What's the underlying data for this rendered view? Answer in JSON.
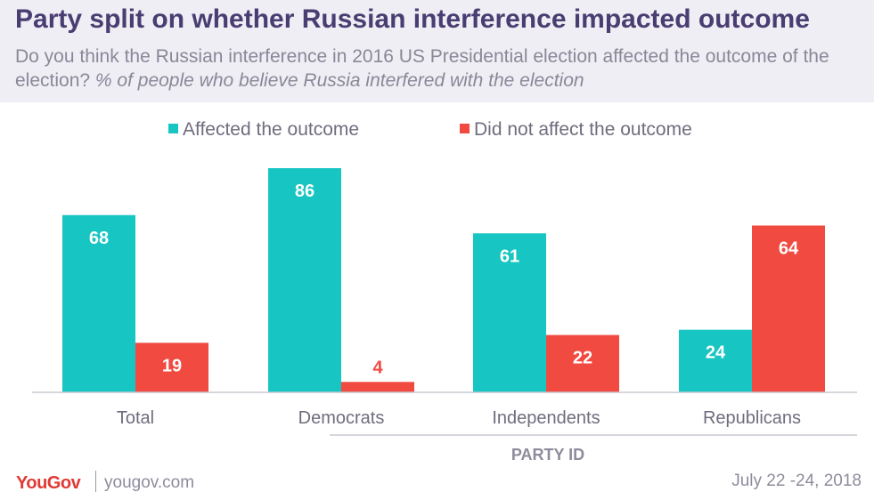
{
  "header": {
    "title": "Party split on whether Russian interference  impacted outcome",
    "subtitle_main": "Do you think the Russian interference in 2016 US Presidential election affected the outcome of the election? ",
    "subtitle_note": "% of people who believe Russia interfered with the election"
  },
  "chart_data": {
    "type": "bar",
    "title": "Party split on whether Russian interference  impacted outcome",
    "categories": [
      "Total",
      "Democrats",
      "Independents",
      "Republicans"
    ],
    "series": [
      {
        "name": "Affected the outcome",
        "color": "#17c5c3",
        "values": [
          68,
          86,
          61,
          24
        ]
      },
      {
        "name": "Did not affect the outcome",
        "color": "#f04a41",
        "values": [
          19,
          4,
          22,
          64
        ]
      }
    ],
    "group_label": "PARTY ID",
    "legend_position": "top-center",
    "grid": false,
    "ylim": [
      0,
      86
    ]
  },
  "footer": {
    "brand": "YouGov",
    "site": "yougov.com",
    "date": "July 22 -24, 2018"
  }
}
